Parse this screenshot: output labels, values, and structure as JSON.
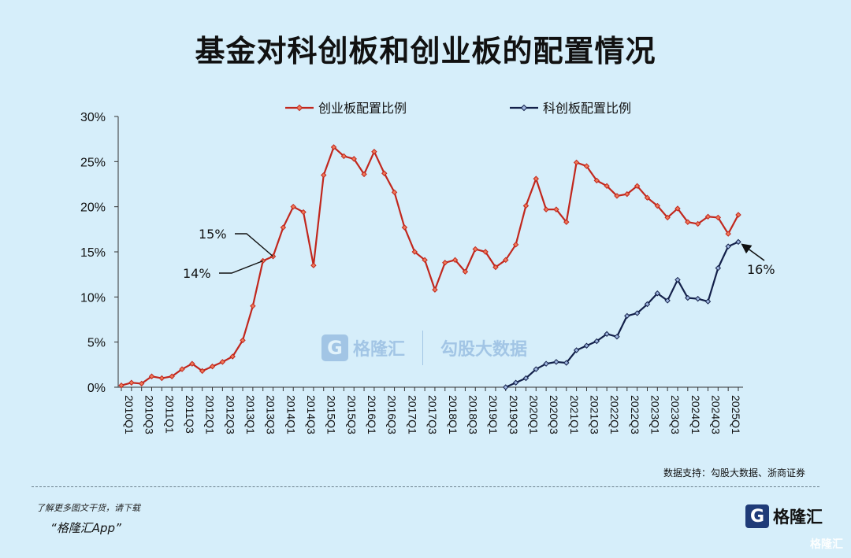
{
  "title": "基金对科创板和创业板的配置情况",
  "source": "数据支持：勾股大数据、浙商证券",
  "footer": {
    "promo_line": "了解更多图文干货，请下载",
    "app_name": "“格隆汇App”",
    "brand_logo": "G",
    "brand_name": "格隆汇",
    "corner_mark": "格隆汇"
  },
  "watermark": {
    "logo": "G",
    "brand": "格隆汇",
    "partner": "勾股大数据"
  },
  "colors": {
    "series_gem": "#c1271d",
    "series_star": "#13204a",
    "background": "#d6eefa",
    "axis": "#333333"
  },
  "chart_data": {
    "type": "line",
    "x": [
      "2010Q1",
      "2010Q2",
      "2010Q3",
      "2010Q4",
      "2011Q1",
      "2011Q2",
      "2011Q3",
      "2011Q4",
      "2012Q1",
      "2012Q2",
      "2012Q3",
      "2012Q4",
      "2013Q1",
      "2013Q2",
      "2013Q3",
      "2013Q4",
      "2014Q1",
      "2014Q2",
      "2014Q3",
      "2014Q4",
      "2015Q1",
      "2015Q2",
      "2015Q3",
      "2015Q4",
      "2016Q1",
      "2016Q2",
      "2016Q3",
      "2016Q4",
      "2017Q1",
      "2017Q2",
      "2017Q3",
      "2017Q4",
      "2018Q1",
      "2018Q2",
      "2018Q3",
      "2018Q4",
      "2019Q1",
      "2019Q2",
      "2019Q3",
      "2019Q4",
      "2020Q1",
      "2020Q2",
      "2020Q3",
      "2020Q4",
      "2021Q1",
      "2021Q2",
      "2021Q3",
      "2021Q4",
      "2022Q1",
      "2022Q2",
      "2022Q3",
      "2022Q4",
      "2023Q1",
      "2023Q2",
      "2023Q3",
      "2023Q4",
      "2024Q1",
      "2024Q2",
      "2024Q3",
      "2024Q4",
      "2025Q1",
      "2025Q2"
    ],
    "tick_labels": [
      "2010Q1",
      "2010Q3",
      "2011Q1",
      "2011Q3",
      "2012Q1",
      "2012Q3",
      "2013Q1",
      "2013Q3",
      "2014Q1",
      "2014Q3",
      "2015Q1",
      "2015Q3",
      "2016Q1",
      "2016Q3",
      "2017Q1",
      "2017Q3",
      "2018Q1",
      "2018Q3",
      "2019Q1",
      "2019Q3",
      "2020Q1",
      "2020Q3",
      "2021Q1",
      "2021Q3",
      "2022Q1",
      "2022Q3",
      "2023Q1",
      "2023Q3",
      "2024Q1",
      "2024Q3",
      "2025Q1"
    ],
    "series": [
      {
        "name": "创业板配置比例",
        "values": [
          0.2,
          0.5,
          0.4,
          1.2,
          1.0,
          1.2,
          2.0,
          2.6,
          1.8,
          2.3,
          2.8,
          3.4,
          5.2,
          9.0,
          14.0,
          14.5,
          17.7,
          20.0,
          19.4,
          13.5,
          23.5,
          26.6,
          25.6,
          25.3,
          23.6,
          26.1,
          23.7,
          21.6,
          17.7,
          15.0,
          14.1,
          10.8,
          13.8,
          14.1,
          12.8,
          15.3,
          15.0,
          13.3,
          14.1,
          15.8,
          20.1,
          23.1,
          19.7,
          19.7,
          18.3,
          24.9,
          24.5,
          22.9,
          22.3,
          21.2,
          21.4,
          22.3,
          21.0,
          20.1,
          18.8,
          19.8,
          18.3,
          18.1,
          18.9,
          18.8,
          17.0,
          19.1
        ]
      },
      {
        "name": "科创板配置比例",
        "values": [
          null,
          null,
          null,
          null,
          null,
          null,
          null,
          null,
          null,
          null,
          null,
          null,
          null,
          null,
          null,
          null,
          null,
          null,
          null,
          null,
          null,
          null,
          null,
          null,
          null,
          null,
          null,
          null,
          null,
          null,
          null,
          null,
          null,
          null,
          null,
          null,
          null,
          null,
          0.0,
          0.5,
          1.0,
          2.0,
          2.6,
          2.8,
          2.7,
          4.1,
          4.6,
          5.1,
          5.9,
          5.6,
          7.9,
          8.2,
          9.2,
          10.4,
          9.6,
          11.9,
          9.9,
          9.8,
          9.5,
          13.2,
          15.6,
          16.1
        ]
      }
    ],
    "ylim": [
      0,
      30
    ],
    "yticks": [
      0,
      5,
      10,
      15,
      20,
      25,
      30
    ],
    "y_format": "%",
    "grid": false,
    "legend_position": "top",
    "annotations": [
      {
        "text": "15%",
        "series": 0,
        "index": 15
      },
      {
        "text": "14%",
        "series": 0,
        "index": 14
      },
      {
        "text": "16%",
        "series": 1,
        "index": 61
      }
    ]
  }
}
